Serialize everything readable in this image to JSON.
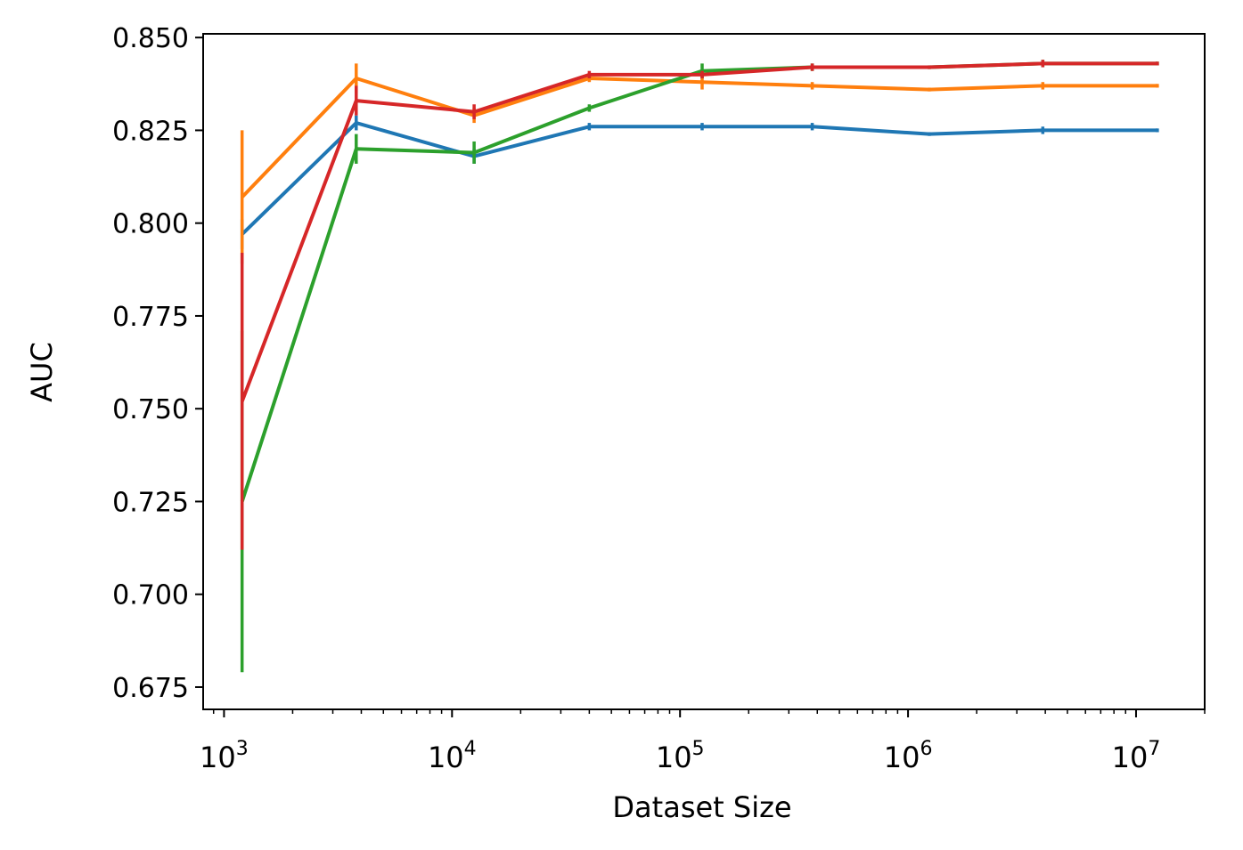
{
  "chart_data": {
    "type": "line",
    "title": "",
    "xlabel": "Dataset Size",
    "ylabel": "AUC",
    "xscale": "log",
    "xlim": [
      810,
      20000000
    ],
    "ylim": [
      0.669,
      0.851
    ],
    "legend": "none",
    "grid": false,
    "x": [
      1200,
      3800,
      12500,
      40000,
      125000,
      380000,
      1240000,
      3900000,
      12400000
    ],
    "y_ticks": [
      {
        "value": 0.675,
        "label": "0.675"
      },
      {
        "value": 0.7,
        "label": "0.700"
      },
      {
        "value": 0.725,
        "label": "0.725"
      },
      {
        "value": 0.75,
        "label": "0.750"
      },
      {
        "value": 0.775,
        "label": "0.775"
      },
      {
        "value": 0.8,
        "label": "0.800"
      },
      {
        "value": 0.825,
        "label": "0.825"
      },
      {
        "value": 0.85,
        "label": "0.850"
      }
    ],
    "x_ticks": [
      {
        "value": 1000,
        "base": "10",
        "exp": "3"
      },
      {
        "value": 10000,
        "base": "10",
        "exp": "4"
      },
      {
        "value": 100000,
        "base": "10",
        "exp": "5"
      },
      {
        "value": 1000000,
        "base": "10",
        "exp": "6"
      },
      {
        "value": 10000000,
        "base": "10",
        "exp": "7"
      }
    ],
    "series": [
      {
        "name": "blue",
        "color": "#1f77b4",
        "values": [
          0.797,
          0.827,
          0.818,
          0.826,
          0.826,
          0.826,
          0.824,
          0.825,
          0.825
        ],
        "errors": [
          0.004,
          0.002,
          0.002,
          0.001,
          0.001,
          0.001,
          0.0005,
          0.001,
          0.0005
        ]
      },
      {
        "name": "orange",
        "color": "#ff7f0e",
        "values": [
          0.807,
          0.839,
          0.829,
          0.839,
          0.838,
          0.837,
          0.836,
          0.837,
          0.837
        ],
        "errors": [
          0.018,
          0.004,
          0.002,
          0.001,
          0.002,
          0.001,
          0.0005,
          0.001,
          0.0005
        ]
      },
      {
        "name": "green",
        "color": "#2ca02c",
        "values": [
          0.725,
          0.82,
          0.819,
          0.831,
          0.841,
          0.842,
          0.842,
          0.843,
          0.843
        ],
        "errors": [
          0.046,
          0.004,
          0.003,
          0.001,
          0.002,
          0.001,
          0.0005,
          0.001,
          0.0005
        ]
      },
      {
        "name": "red",
        "color": "#d62728",
        "values": [
          0.752,
          0.833,
          0.83,
          0.84,
          0.84,
          0.842,
          0.842,
          0.843,
          0.843
        ],
        "errors": [
          0.04,
          0.004,
          0.002,
          0.001,
          0.001,
          0.001,
          0.0005,
          0.001,
          0.0005
        ]
      }
    ]
  }
}
